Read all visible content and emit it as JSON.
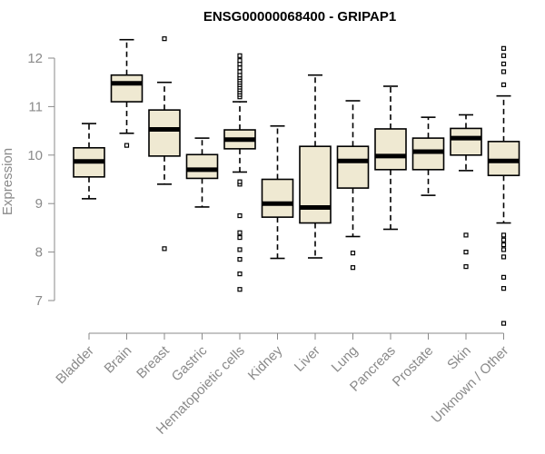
{
  "chart_data": {
    "type": "boxplot",
    "title": "ENSG00000068400 - GRIPAP1",
    "xlabel": "",
    "ylabel": "Expression",
    "ylim": [
      6.5,
      12.5
    ],
    "yticks": [
      7,
      8,
      9,
      10,
      11,
      12
    ],
    "categories": [
      "Bladder",
      "Brain",
      "Breast",
      "Gastric",
      "Hematopoietic cells",
      "Kidney",
      "Liver",
      "Lung",
      "Pancreas",
      "Prostate",
      "Skin",
      "Unknown / Other"
    ],
    "box_fill": "#efe9d2",
    "box_stroke": "#000000",
    "boxes": [
      {
        "category": "Bladder",
        "whisker_low": 9.1,
        "q1": 9.55,
        "median": 9.87,
        "q3": 10.15,
        "whisker_high": 10.65,
        "outliers": []
      },
      {
        "category": "Brain",
        "whisker_low": 10.45,
        "q1": 11.1,
        "median": 11.48,
        "q3": 11.65,
        "whisker_high": 12.38,
        "outliers": [
          10.2
        ]
      },
      {
        "category": "Breast",
        "whisker_low": 9.4,
        "q1": 9.98,
        "median": 10.53,
        "q3": 10.93,
        "whisker_high": 11.5,
        "outliers": [
          8.07,
          12.4
        ]
      },
      {
        "category": "Gastric",
        "whisker_low": 8.93,
        "q1": 9.52,
        "median": 9.7,
        "q3": 10.01,
        "whisker_high": 10.35,
        "outliers": []
      },
      {
        "category": "Hematopoietic cells",
        "whisker_low": 9.65,
        "q1": 10.13,
        "median": 10.32,
        "q3": 10.52,
        "whisker_high": 11.1,
        "outliers": [
          7.23,
          7.55,
          7.85,
          8.05,
          8.3,
          8.4,
          8.75,
          9.4,
          9.45,
          11.2,
          11.25,
          11.3,
          11.35,
          11.4,
          11.45,
          11.5,
          11.55,
          11.6,
          11.65,
          11.72,
          11.8,
          11.88,
          11.95,
          12.05
        ]
      },
      {
        "category": "Kidney",
        "whisker_low": 7.87,
        "q1": 8.72,
        "median": 9.0,
        "q3": 9.5,
        "whisker_high": 10.6,
        "outliers": []
      },
      {
        "category": "Liver",
        "whisker_low": 7.88,
        "q1": 8.6,
        "median": 8.92,
        "q3": 10.18,
        "whisker_high": 11.65,
        "outliers": []
      },
      {
        "category": "Lung",
        "whisker_low": 8.32,
        "q1": 9.32,
        "median": 9.88,
        "q3": 10.18,
        "whisker_high": 11.12,
        "outliers": [
          7.68,
          7.98
        ]
      },
      {
        "category": "Pancreas",
        "whisker_low": 8.47,
        "q1": 9.7,
        "median": 9.98,
        "q3": 10.54,
        "whisker_high": 11.42,
        "outliers": []
      },
      {
        "category": "Prostate",
        "whisker_low": 9.17,
        "q1": 9.7,
        "median": 10.07,
        "q3": 10.35,
        "whisker_high": 10.78,
        "outliers": []
      },
      {
        "category": "Skin",
        "whisker_low": 9.68,
        "q1": 10.0,
        "median": 10.35,
        "q3": 10.55,
        "whisker_high": 10.83,
        "outliers": [
          7.7,
          8.0,
          8.35
        ]
      },
      {
        "category": "Unknown / Other",
        "whisker_low": 8.6,
        "q1": 9.58,
        "median": 9.88,
        "q3": 10.28,
        "whisker_high": 11.22,
        "outliers": [
          6.53,
          7.25,
          7.48,
          7.9,
          8.05,
          8.15,
          8.25,
          8.35,
          11.45,
          11.72,
          11.88,
          12.05,
          12.2
        ]
      }
    ]
  }
}
